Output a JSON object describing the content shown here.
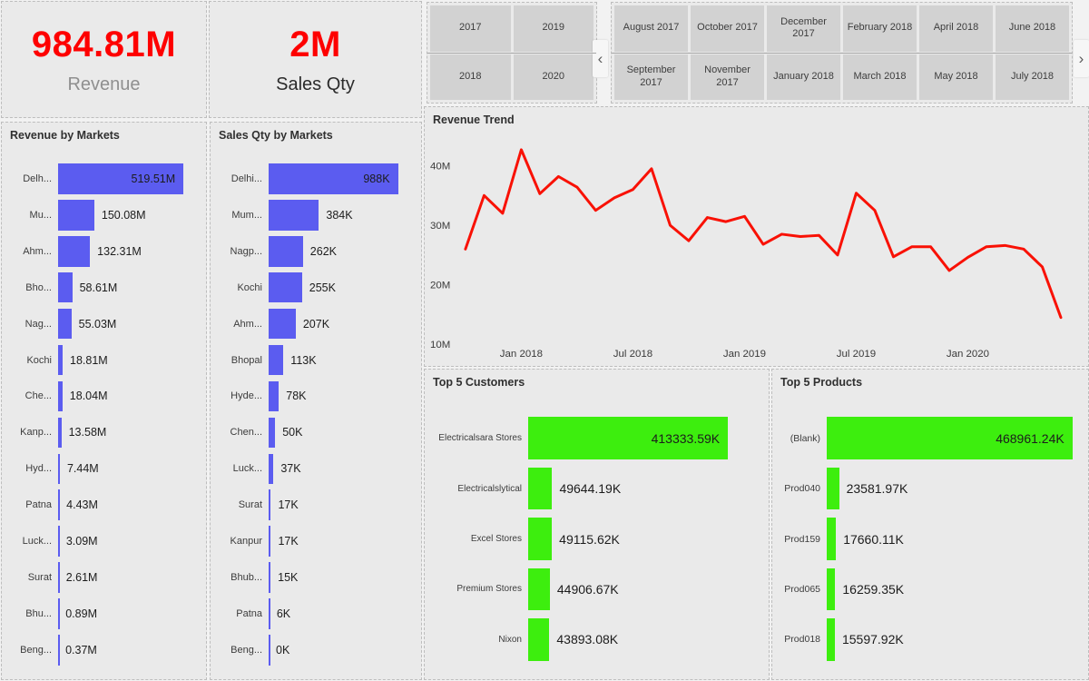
{
  "kpis": [
    {
      "value": "984.81M",
      "label": "Revenue",
      "value_color": "#fe0000",
      "label_color": "#8f8f8f"
    },
    {
      "value": "2M",
      "label": "Sales Qty",
      "value_color": "#fe0000",
      "label_color": "#2b2b2b"
    }
  ],
  "year_slicer": {
    "rows": [
      [
        "2017",
        "2019"
      ],
      [
        "2018",
        "2020"
      ]
    ]
  },
  "month_slicer": {
    "rows": [
      [
        "August 2017",
        "October 2017",
        "December 2017",
        "February 2018",
        "April 2018",
        "June 2018"
      ],
      [
        "September 2017",
        "November 2017",
        "January 2018",
        "March 2018",
        "May 2018",
        "July 2018"
      ]
    ],
    "prev": "‹",
    "next": "›"
  },
  "colors": {
    "bar_blue": "#5b5cf0",
    "bar_green": "#3dee0e",
    "line_red": "#f91105",
    "panel_bg": "#eaeaea",
    "slicer_button_bg": "#d2d2d2"
  },
  "chart_data": [
    {
      "type": "bar",
      "orientation": "horizontal",
      "title": "Revenue by Markets",
      "bar_color": "#5b5cf0",
      "categories": [
        "Delh...",
        "Mu...",
        "Ahm...",
        "Bho...",
        "Nag...",
        "Kochi",
        "Che...",
        "Kanp...",
        "Hyd...",
        "Patna",
        "Luck...",
        "Surat",
        "Bhu...",
        "Beng..."
      ],
      "values": [
        519.51,
        150.08,
        132.31,
        58.61,
        55.03,
        18.81,
        18.04,
        13.58,
        7.44,
        4.43,
        3.09,
        2.61,
        0.89,
        0.37
      ],
      "value_labels": [
        "519.51M",
        "150.08M",
        "132.31M",
        "58.61M",
        "55.03M",
        "18.81M",
        "18.04M",
        "13.58M",
        "7.44M",
        "4.43M",
        "3.09M",
        "2.61M",
        "0.89M",
        "0.37M"
      ],
      "unit": "M"
    },
    {
      "type": "bar",
      "orientation": "horizontal",
      "title": "Sales Qty by Markets",
      "bar_color": "#5b5cf0",
      "categories": [
        "Delhi...",
        "Mum...",
        "Nagp...",
        "Kochi",
        "Ahm...",
        "Bhopal",
        "Hyde...",
        "Chen...",
        "Luck...",
        "Surat",
        "Kanpur",
        "Bhub...",
        "Patna",
        "Beng..."
      ],
      "values": [
        988,
        384,
        262,
        255,
        207,
        113,
        78,
        50,
        37,
        17,
        17,
        15,
        6,
        0
      ],
      "value_labels": [
        "988K",
        "384K",
        "262K",
        "255K",
        "207K",
        "113K",
        "78K",
        "50K",
        "37K",
        "17K",
        "17K",
        "15K",
        "6K",
        "0K"
      ],
      "unit": "K"
    },
    {
      "type": "line",
      "title": "Revenue Trend",
      "line_color": "#f91105",
      "x_tick_labels": [
        "Jan 2018",
        "Jul 2018",
        "Jan 2019",
        "Jul 2019",
        "Jan 2020"
      ],
      "x_tick_indices": [
        3,
        9,
        15,
        21,
        27
      ],
      "y_tick_labels": [
        "40M",
        "30M",
        "20M",
        "10M"
      ],
      "y_tick_values": [
        40,
        30,
        20,
        10
      ],
      "ylim": [
        10,
        45
      ],
      "grid": false,
      "legend": false,
      "values_millions": [
        26,
        35,
        32,
        42.7,
        35.3,
        38.2,
        36.4,
        32.5,
        34.6,
        36,
        39.5,
        30,
        27.4,
        31.3,
        30.6,
        31.5,
        26.8,
        28.5,
        28.1,
        28.3,
        25,
        35.4,
        32.5,
        24.7,
        26.4,
        26.4,
        22.4,
        24.6,
        26.4,
        26.6,
        26,
        23,
        14.5
      ]
    },
    {
      "type": "bar",
      "orientation": "horizontal",
      "title": "Top 5 Customers",
      "bar_color": "#3dee0e",
      "categories": [
        "Electricalsara Stores",
        "Electricalslytical",
        "Excel Stores",
        "Premium Stores",
        "Nixon"
      ],
      "values": [
        413333.59,
        49644.19,
        49115.62,
        44906.67,
        43893.08
      ],
      "value_labels": [
        "413333.59K",
        "49644.19K",
        "49115.62K",
        "44906.67K",
        "43893.08K"
      ],
      "unit": "K"
    },
    {
      "type": "bar",
      "orientation": "horizontal",
      "title": "Top 5 Products",
      "bar_color": "#3dee0e",
      "categories": [
        "(Blank)",
        "Prod040",
        "Prod159",
        "Prod065",
        "Prod018"
      ],
      "values": [
        468961.24,
        23581.97,
        17660.11,
        16259.35,
        15597.92
      ],
      "value_labels": [
        "468961.24K",
        "23581.97K",
        "17660.11K",
        "16259.35K",
        "15597.92K"
      ],
      "unit": "K"
    }
  ]
}
